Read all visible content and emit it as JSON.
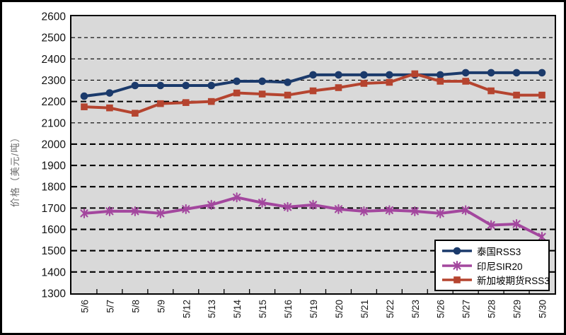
{
  "chart_data": {
    "type": "line",
    "title": "",
    "xlabel": "",
    "ylabel": "价格（美元/吨）",
    "ylim": [
      1300,
      2600
    ],
    "ytick_step": 100,
    "ytick_labels": [
      "1300",
      "1400",
      "1500",
      "1600",
      "1700",
      "1800",
      "1900",
      "2000",
      "2100",
      "2200",
      "2300",
      "2400",
      "2500",
      "2600"
    ],
    "categories": [
      "5/6",
      "5/7",
      "5/8",
      "5/9",
      "5/12",
      "5/13",
      "5/14",
      "5/15",
      "5/16",
      "5/19",
      "5/20",
      "5/21",
      "5/22",
      "5/23",
      "5/26",
      "5/27",
      "5/28",
      "5/29",
      "5/30"
    ],
    "series": [
      {
        "name": "泰国RSS3",
        "marker": "circle",
        "color": "#1B3A6B",
        "values": [
          2225,
          2240,
          2275,
          2275,
          2275,
          2275,
          2295,
          2295,
          2290,
          2325,
          2325,
          2325,
          2325,
          2325,
          2325,
          2335,
          2335,
          2335,
          2335
        ]
      },
      {
        "name": "印尼SIR20",
        "marker": "star",
        "color": "#A3479E",
        "values": [
          1675,
          1685,
          1685,
          1675,
          1695,
          1715,
          1750,
          1725,
          1705,
          1715,
          1695,
          1685,
          1690,
          1685,
          1675,
          1690,
          1620,
          1625,
          1565
        ]
      },
      {
        "name": "新加坡期货RSS3",
        "marker": "square",
        "color": "#B5442F",
        "values": [
          2175,
          2170,
          2145,
          2190,
          2195,
          2200,
          2240,
          2235,
          2230,
          2250,
          2265,
          2285,
          2290,
          2330,
          2295,
          2295,
          2250,
          2230,
          2230
        ]
      }
    ],
    "grid": "horizontal-dashed",
    "thin_gridlines": [
      2100,
      2300,
      2400,
      2500
    ],
    "legend_position": "inside-bottom-right",
    "plot_background": "#D9D9D9",
    "axis_color": "#000000"
  }
}
